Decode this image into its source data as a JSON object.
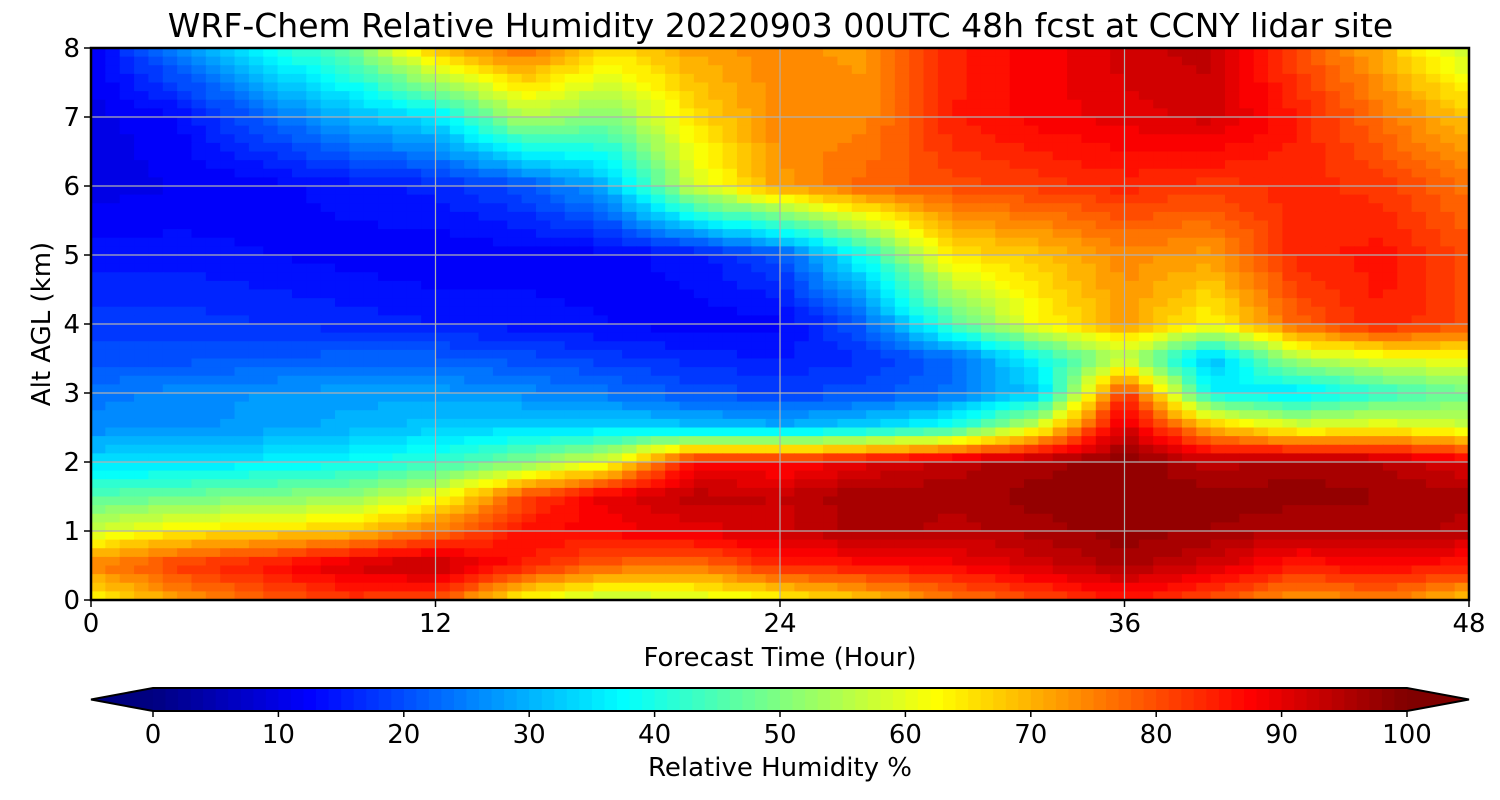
{
  "chart_data": {
    "type": "heatmap",
    "title": "WRF-Chem Relative Humidity 20220903 00UTC 48h fcst at CCNY lidar site",
    "xlabel": "Forecast Time (Hour)",
    "ylabel": "Alt AGL (km)",
    "xlim": [
      0,
      48
    ],
    "ylim": [
      0,
      8
    ],
    "xticks": [
      "0",
      "12",
      "24",
      "36",
      "48"
    ],
    "yticks": [
      "0",
      "1",
      "2",
      "3",
      "4",
      "5",
      "6",
      "7",
      "8"
    ],
    "grid": true,
    "colorbar": {
      "label": "Relative Humidity %",
      "range": [
        0,
        100
      ],
      "colormap": "jet",
      "extend": "both",
      "orientation": "horizontal",
      "placement": "bottom",
      "ticks": [
        "0",
        "10",
        "20",
        "30",
        "40",
        "50",
        "60",
        "70",
        "80",
        "90",
        "100"
      ]
    },
    "x": [
      0,
      3,
      6,
      9,
      12,
      15,
      18,
      21,
      24,
      27,
      30,
      33,
      36,
      39,
      42,
      45,
      48
    ],
    "y": [
      0,
      0.5,
      1,
      1.5,
      2,
      2.5,
      3,
      3.5,
      4,
      5,
      6,
      7,
      8
    ],
    "z": [
      [
        62,
        72,
        78,
        82,
        80,
        62,
        55,
        58,
        62,
        68,
        75,
        80,
        85,
        80,
        72,
        75,
        68
      ],
      [
        75,
        82,
        86,
        92,
        95,
        85,
        78,
        76,
        84,
        86,
        88,
        92,
        96,
        92,
        85,
        88,
        85
      ],
      [
        58,
        64,
        66,
        68,
        76,
        86,
        88,
        90,
        92,
        96,
        94,
        96,
        98,
        97,
        95,
        96,
        94
      ],
      [
        46,
        48,
        50,
        52,
        60,
        80,
        90,
        94,
        93,
        97,
        96,
        98,
        99,
        98,
        98,
        97,
        96
      ],
      [
        34,
        34,
        36,
        38,
        42,
        50,
        60,
        88,
        86,
        90,
        94,
        96,
        99,
        94,
        96,
        95,
        90
      ],
      [
        26,
        26,
        28,
        30,
        32,
        34,
        34,
        32,
        30,
        34,
        40,
        60,
        92,
        70,
        60,
        62,
        58
      ],
      [
        24,
        26,
        27,
        28,
        28,
        26,
        24,
        20,
        19,
        20,
        24,
        32,
        84,
        38,
        34,
        42,
        48
      ],
      [
        20,
        20,
        21,
        22,
        22,
        20,
        18,
        16,
        15,
        17,
        22,
        38,
        56,
        30,
        55,
        60,
        62
      ],
      [
        18,
        18,
        17,
        16,
        15,
        14,
        13,
        12,
        12,
        22,
        45,
        62,
        72,
        62,
        78,
        85,
        80
      ],
      [
        14,
        14,
        13,
        12,
        11,
        12,
        12,
        14,
        20,
        40,
        65,
        68,
        74,
        72,
        84,
        86,
        80
      ],
      [
        10,
        11,
        12,
        14,
        16,
        20,
        30,
        58,
        72,
        78,
        80,
        82,
        84,
        82,
        84,
        82,
        76
      ],
      [
        10,
        13,
        22,
        30,
        35,
        55,
        50,
        65,
        75,
        74,
        85,
        88,
        90,
        92,
        85,
        76,
        68
      ],
      [
        12,
        25,
        38,
        48,
        70,
        78,
        66,
        72,
        74,
        72,
        84,
        88,
        92,
        94,
        80,
        70,
        56
      ]
    ]
  }
}
